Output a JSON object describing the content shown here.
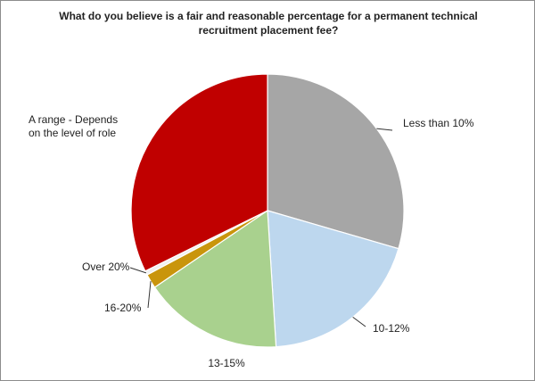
{
  "chart_data": {
    "type": "pie",
    "title_lines": [
      "What do you believe is a fair and reasonable percentage for a permanent technical",
      "recruitment placement fee?"
    ],
    "slices": [
      {
        "label": "Less than 10%",
        "label_lines": [
          "Less than 10%"
        ],
        "value": 29.5,
        "color": "#a6a6a6"
      },
      {
        "label": "10-12%",
        "label_lines": [
          "10-12%"
        ],
        "value": 19.5,
        "color": "#bdd7ee"
      },
      {
        "label": "13-15%",
        "label_lines": [
          "13-15%"
        ],
        "value": 16.5,
        "color": "#a9d18e"
      },
      {
        "label": "16-20%",
        "label_lines": [
          "16-20%"
        ],
        "value": 1.7,
        "color": "#c9950c"
      },
      {
        "label": "Over 20%",
        "label_lines": [
          "Over 20%"
        ],
        "value": 0.5,
        "color": "#f0f0f0"
      },
      {
        "label": "A range - Depends on the level of role",
        "label_lines": [
          "A range - Depends",
          "on the level of role"
        ],
        "value": 32.3,
        "color": "#c00000"
      }
    ],
    "legend": "none"
  }
}
